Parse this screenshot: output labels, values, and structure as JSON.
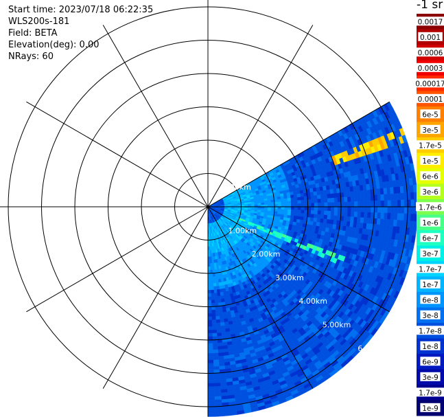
{
  "header": {
    "start_time": "Start time: 2023/07/18 06:22:35",
    "instrument": "WLS200s-181",
    "field": "Field: BETA",
    "elevation": "Elevation(deg): 0.00",
    "nrays": "NRays: 60"
  },
  "colorbar": {
    "unit_label": "-1 sr",
    "ticks": [
      "0.0017",
      "0.001",
      "0.0006",
      "0.0003",
      "0.00017",
      "0.0001",
      "6e-5",
      "3e-5",
      "1.7e-5",
      "1e-5",
      "6e-6",
      "3e-6",
      "1.7e-6",
      "1e-6",
      "6e-7",
      "3e-7",
      "1.7e-7",
      "1e-7",
      "6e-8",
      "3e-8",
      "1.7e-8",
      "1e-8",
      "6e-9",
      "3e-9",
      "1.7e-9",
      "1e-9"
    ],
    "colors": [
      "#8b0000",
      "#b00000",
      "#d00000",
      "#f00000",
      "#ff2a00",
      "#ff5500",
      "#ff7f00",
      "#ffa500",
      "#ffcc00",
      "#ffee00",
      "#e6ff00",
      "#b4ff1e",
      "#7dff50",
      "#48ff8a",
      "#1effc2",
      "#00f0e6",
      "#00d4ff",
      "#00b4ff",
      "#0094ff",
      "#0070f0",
      "#0050e0",
      "#0032d0",
      "#0018c0",
      "#000aa8",
      "#000090",
      "#000070"
    ]
  },
  "chart_data": {
    "type": "ppi_polar_scan",
    "range_labels": [
      "0.00km",
      "1.00km",
      "2.00km",
      "3.00km",
      "4.00km",
      "5.00km",
      "6"
    ],
    "azimuth_sector_deg": [
      60,
      180
    ],
    "max_range_km": 6.3,
    "grid": true,
    "bands": [
      {
        "from_km": 0.0,
        "to_km": 0.5,
        "level": "1.7e-8"
      },
      {
        "from_km": 0.5,
        "to_km": 1.4,
        "level": "1e-7"
      },
      {
        "from_km": 1.4,
        "to_km": 2.5,
        "level": "6e-8"
      },
      {
        "from_km": 2.5,
        "to_km": 6.3,
        "level": "1.7e-8"
      }
    ],
    "features": [
      {
        "azimuth_deg": 70,
        "from_km": 4.0,
        "to_km": 6.3,
        "level": "1.7e-5"
      },
      {
        "azimuth_deg": 112,
        "from_km": 1.0,
        "to_km": 4.4,
        "level": "6e-7"
      }
    ]
  }
}
